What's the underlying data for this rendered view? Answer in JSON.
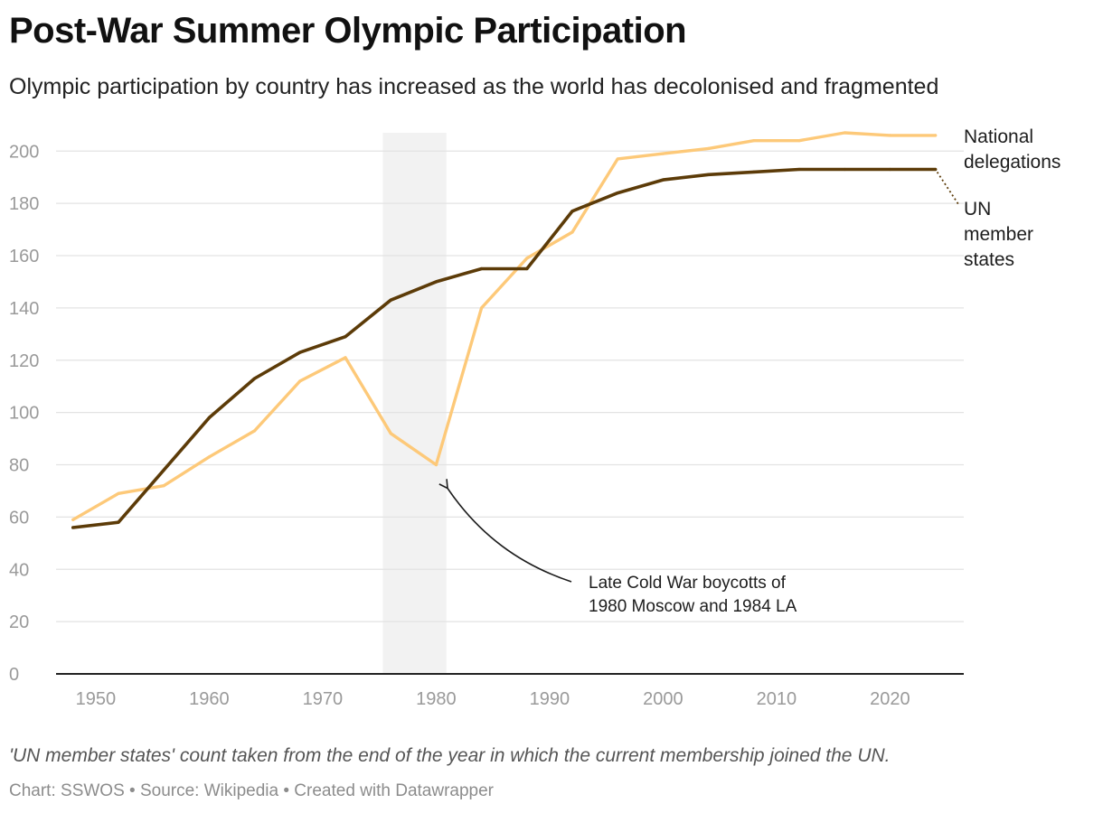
{
  "title": "Post-War Summer Olympic Participation",
  "subtitle": "Olympic participation by country has increased as the world has decolonised and fragmented",
  "note": "'UN member states' count taken from the end of the year in which the current membership joined the UN.",
  "credits": "Chart: SSWOS • Source: Wikipedia • Created with Datawrapper",
  "colors": {
    "national_delegations": "#fdc979",
    "un_member_states": "#5c3b08",
    "highlight_band": "#f2f2f2",
    "grid": "#e3e3e3",
    "axis": "#222222"
  },
  "chart_data": {
    "type": "line",
    "title": "Post-War Summer Olympic Participation",
    "xlabel": "",
    "ylabel": "",
    "xlim": [
      1946.5,
      2026.5
    ],
    "ylim": [
      0,
      207
    ],
    "x_ticks": [
      1950,
      1960,
      1970,
      1980,
      1990,
      2000,
      2010,
      2020
    ],
    "y_ticks": [
      0,
      20,
      40,
      60,
      80,
      100,
      120,
      140,
      160,
      180,
      200
    ],
    "grid": true,
    "highlight_range": [
      1975.3,
      1980.9
    ],
    "series": [
      {
        "name": "National delegations",
        "label_lines": [
          "National",
          "delegations"
        ],
        "color": "#fdc979",
        "x": [
          1948,
          1952,
          1956,
          1960,
          1964,
          1968,
          1972,
          1976,
          1980,
          1984,
          1988,
          1992,
          1996,
          2000,
          2004,
          2008,
          2012,
          2016,
          2020,
          2024
        ],
        "values": [
          59,
          69,
          72,
          83,
          93,
          112,
          121,
          92,
          80,
          140,
          159,
          169,
          197,
          199,
          201,
          204,
          204,
          207,
          206,
          206
        ]
      },
      {
        "name": "UN member states",
        "label_lines": [
          "UN",
          "member",
          "states"
        ],
        "color": "#5c3b08",
        "x": [
          1948,
          1952,
          1956,
          1960,
          1964,
          1968,
          1972,
          1976,
          1980,
          1984,
          1988,
          1992,
          1996,
          2000,
          2004,
          2008,
          2012,
          2016,
          2020,
          2024
        ],
        "values": [
          56,
          58,
          78,
          98,
          113,
          123,
          129,
          143,
          150,
          155,
          155,
          177,
          184,
          189,
          191,
          192,
          193,
          193,
          193,
          193
        ]
      }
    ],
    "annotations": [
      {
        "text_lines": [
          "Late Cold War boycotts of",
          "1980 Moscow and 1984 LA"
        ],
        "target": [
          1981,
          71
        ]
      }
    ]
  }
}
